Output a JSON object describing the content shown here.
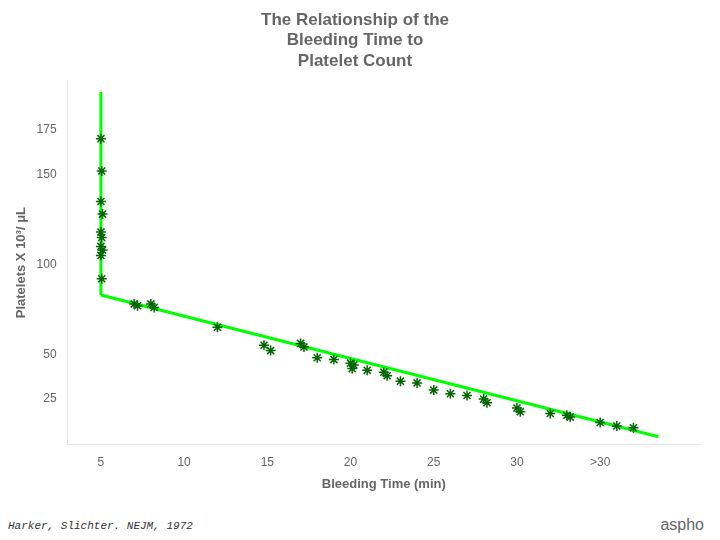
{
  "chart_data": {
    "type": "scatter",
    "title": "The Relationship of the\nBleeding Time to\nPlatelet Count",
    "xlabel": "Bleeding Time (min)",
    "ylabel": "Platelets X 10³/ μL",
    "xlim": [
      3.0,
      41.0
    ],
    "ylim": [
      0,
      202
    ],
    "xticks": [
      5,
      10,
      15,
      20,
      25,
      30,
      {
        "value": 35,
        "label": ">30"
      }
    ],
    "yticks": [
      25,
      50,
      100,
      150,
      175
    ],
    "grid": false,
    "series": [
      {
        "type": "scatter",
        "color": "#006600",
        "marker": "star",
        "x": [
          5.0,
          5.05,
          5.0,
          5.1,
          5.0,
          5.05,
          5.0,
          5.1,
          5.0,
          5.05,
          7.0,
          7.2,
          8.0,
          8.2,
          12.0,
          14.8,
          15.2,
          17.0,
          17.2,
          18.0,
          19.0,
          20.0,
          20.2,
          20.1,
          21.0,
          22.0,
          22.2,
          23.0,
          24.0,
          25.0,
          26.0,
          27.0,
          28.0,
          28.2,
          30.0,
          30.2,
          32.0,
          33.0,
          33.2,
          35.0,
          36.0,
          37.0
        ],
        "values": [
          170,
          152,
          135,
          128,
          118,
          115,
          110,
          108,
          105,
          92,
          78,
          77,
          78,
          76,
          65,
          55,
          52,
          56,
          54,
          48,
          47,
          45,
          44,
          42,
          41,
          40,
          38,
          35,
          34,
          30,
          28,
          27,
          25,
          23,
          20,
          18,
          17,
          16,
          15,
          12,
          10,
          9
        ]
      },
      {
        "type": "line",
        "color": "#00ff00",
        "x": [
          5.0,
          5.0
        ],
        "values": [
          196,
          83
        ]
      },
      {
        "type": "line",
        "color": "#00ff00",
        "x": [
          5.0,
          38.5
        ],
        "values": [
          83,
          4
        ]
      }
    ],
    "annotations": [
      "Harker, Slichter.  NEJM, 1972",
      "aspho"
    ]
  }
}
